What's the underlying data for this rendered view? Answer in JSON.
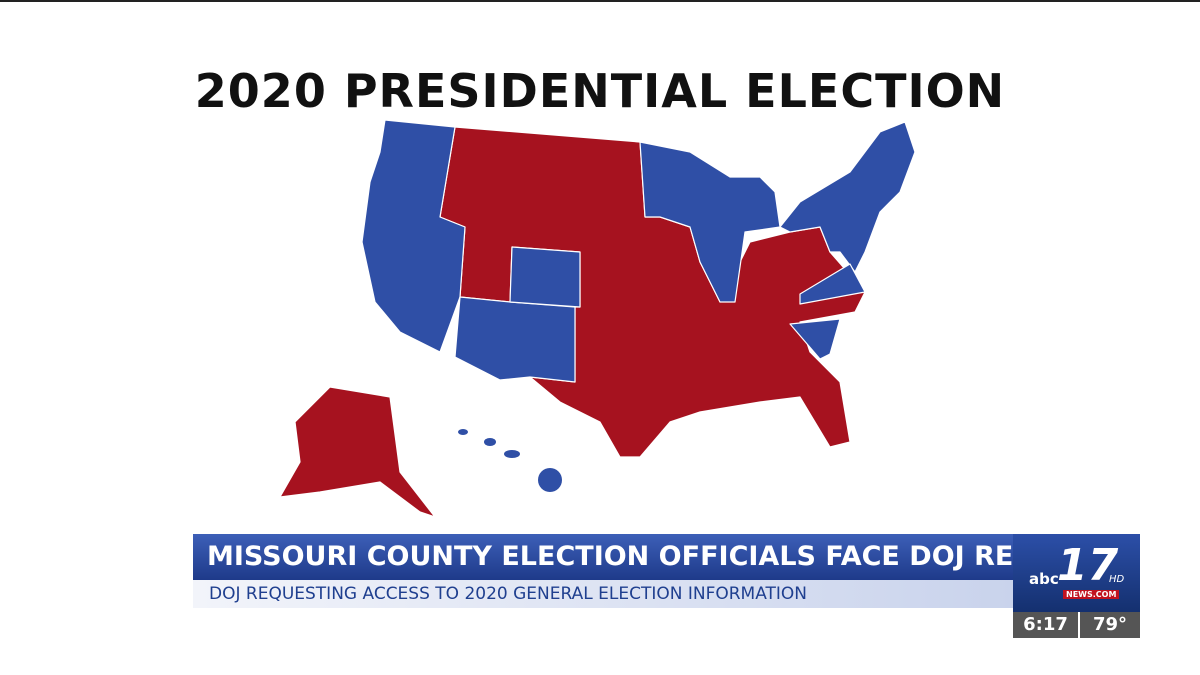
{
  "title": "2020 PRESIDENTIAL ELECTION",
  "lower_third": {
    "headline": "MISSOURI COUNTY ELECTION OFFICIALS FACE DOJ REQUESTS",
    "subheadline": "DOJ REQUESTING ACCESS TO 2020 GENERAL ELECTION INFORMATION"
  },
  "logo": {
    "network": "abc",
    "channel": "17",
    "hd": "HD",
    "site": "NEWS.COM"
  },
  "status": {
    "time": "6:17",
    "temperature": "79°"
  }
}
